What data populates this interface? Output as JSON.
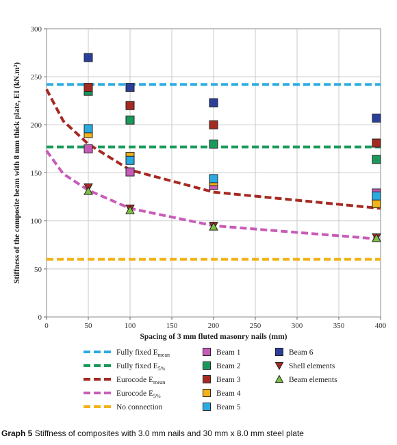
{
  "chart_data": {
    "type": "scatter",
    "ylabel": "Stiffness of the composite beam with 8 mm thick plate, EI (kN.m²)",
    "xlabel": "Spacing of 3 mm fluted masonry nails (mm)",
    "xlim": [
      0,
      400
    ],
    "ylim": [
      0,
      300
    ],
    "x_ticks": [
      "0",
      "50",
      "100",
      "150",
      "200",
      "250",
      "300",
      "350",
      "400"
    ],
    "y_ticks": [
      "0",
      "50",
      "100",
      "150",
      "200",
      "250",
      "300"
    ],
    "grid": true,
    "lines": [
      {
        "name": "Fully fixed E",
        "sub": "mean",
        "color": "#29abe2",
        "y": 242
      },
      {
        "name": "Fully fixed E",
        "sub": "5%",
        "color": "#1a9a5a",
        "y": 177
      },
      {
        "name": "Eurocode E",
        "sub": "mean",
        "color": "#a52a22",
        "x": [
          0,
          20,
          50,
          100,
          200,
          400
        ],
        "y": [
          237,
          204,
          180,
          153,
          130,
          113
        ]
      },
      {
        "name": "Eurocode E",
        "sub": "5%",
        "color": "#c85cb8",
        "x": [
          0,
          20,
          50,
          100,
          200,
          400
        ],
        "y": [
          173,
          149,
          132,
          113,
          95,
          81
        ]
      },
      {
        "name": "No connection",
        "sub": "",
        "color": "#f2b31a",
        "y": 60
      }
    ],
    "series": [
      {
        "name": "Beam 1",
        "marker": "square",
        "color": "#c65cb8",
        "x": [
          50,
          100,
          200,
          400
        ],
        "y": [
          175,
          151,
          137,
          129
        ]
      },
      {
        "name": "Beam 2",
        "marker": "square",
        "color": "#1a9a5a",
        "x": [
          50,
          100,
          200,
          400
        ],
        "y": [
          235,
          205,
          180,
          164
        ]
      },
      {
        "name": "Beam 3",
        "marker": "square",
        "color": "#a52a22",
        "x": [
          50,
          100,
          200,
          400
        ],
        "y": [
          239,
          220,
          200,
          181
        ]
      },
      {
        "name": "Beam 4",
        "marker": "square",
        "color": "#f2b31a",
        "x": [
          50,
          100,
          200,
          400
        ],
        "y": [
          191,
          167,
          141,
          118
        ]
      },
      {
        "name": "Beam 5",
        "marker": "square",
        "color": "#29abe2",
        "x": [
          50,
          100,
          200,
          400
        ],
        "y": [
          196,
          163,
          144,
          126
        ]
      },
      {
        "name": "Beam 6",
        "marker": "square",
        "color": "#2b3f9a",
        "x": [
          50,
          100,
          200,
          400
        ],
        "y": [
          270,
          239,
          223,
          207
        ]
      },
      {
        "name": "Shell elements",
        "marker": "triangle-down",
        "color": "#a52a22",
        "x": [
          50,
          100,
          200,
          400
        ],
        "y": [
          135,
          113,
          95,
          83
        ]
      },
      {
        "name": "Beam elements",
        "marker": "triangle-up",
        "color": "#7cc242",
        "x": [
          50,
          100,
          200,
          400
        ],
        "y": [
          131,
          111,
          94,
          82
        ]
      }
    ]
  },
  "caption": {
    "number": "Graph 5",
    "text": "Stiffness of composites with 3.0 mm nails and 30 mm x 8.0 mm steel plate"
  }
}
